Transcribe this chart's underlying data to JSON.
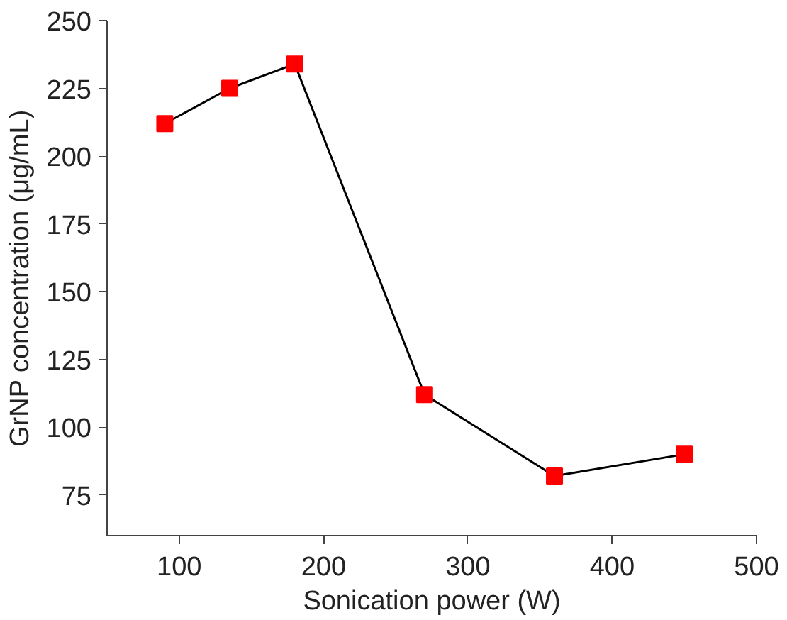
{
  "chart_data": {
    "type": "line",
    "xlabel": "Sonication power (W)",
    "ylabel": "GrNP concentration (μg/mL)",
    "x": [
      90,
      135,
      180,
      270,
      360,
      450
    ],
    "series": [
      {
        "color": "#ff0000",
        "values": [
          212,
          225,
          234,
          112,
          82,
          90
        ]
      }
    ],
    "xlim": [
      50,
      500
    ],
    "xticks": [
      100,
      200,
      300,
      400,
      500
    ],
    "ylim": [
      60,
      250
    ],
    "yticks": [
      75,
      100,
      125,
      150,
      175,
      200,
      225,
      250
    ],
    "marker": "square",
    "line_style": "solid"
  }
}
